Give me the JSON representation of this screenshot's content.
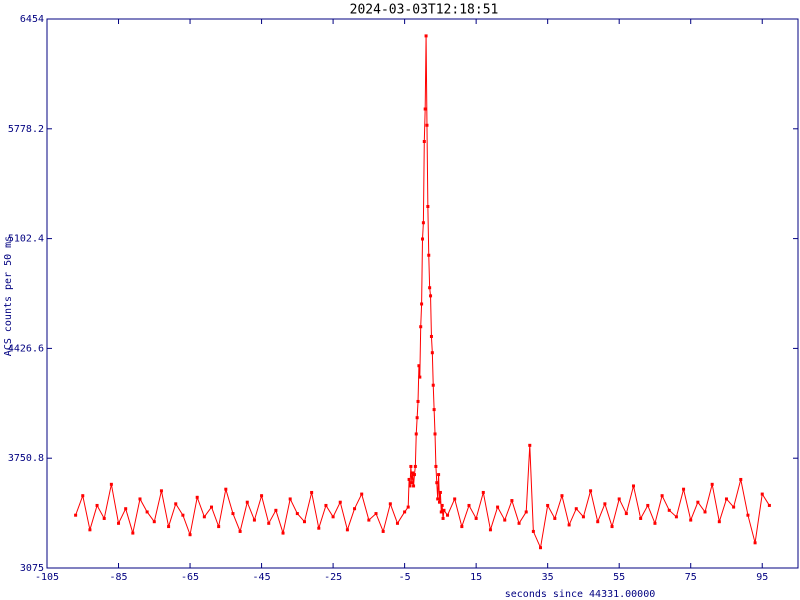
{
  "chart_data": {
    "type": "line",
    "title": "2024-03-03T12:18:51",
    "x_label": "seconds since 44331.00000",
    "y_label": "ACS counts per 50 ms",
    "xlim": [
      -105,
      105
    ],
    "xticks": [
      -105,
      -85,
      -65,
      -45,
      -25,
      -5,
      15,
      35,
      55,
      75,
      95
    ],
    "ylim": [
      3075,
      6454
    ],
    "yticks": [
      3075,
      3750.8,
      4426.6,
      5102.4,
      5778.2,
      6454
    ],
    "x": [
      -97,
      -95,
      -93,
      -91,
      -89,
      -87,
      -85,
      -83,
      -81,
      -79,
      -77,
      -75,
      -73,
      -71,
      -69,
      -67,
      -65,
      -63,
      -61,
      -59,
      -57,
      -55,
      -53,
      -51,
      -49,
      -47,
      -45,
      -43,
      -41,
      -39,
      -37,
      -35,
      -33,
      -31,
      -29,
      -27,
      -25,
      -23,
      -21,
      -19,
      -17,
      -15,
      -13,
      -11,
      -9,
      -7,
      -5,
      -4,
      -3.75,
      -3.5,
      -3.25,
      -3,
      -2.75,
      -2.5,
      -2.25,
      -2,
      -1.75,
      -1.5,
      -1.25,
      -1,
      -0.75,
      -0.5,
      -0.25,
      0,
      0.25,
      0.5,
      0.75,
      1,
      1.25,
      1.5,
      1.75,
      2,
      2.25,
      2.5,
      2.75,
      3,
      3.25,
      3.5,
      3.75,
      4,
      4.25,
      4.5,
      4.75,
      5,
      5.25,
      5.5,
      5.75,
      6,
      7,
      9,
      11,
      13,
      15,
      17,
      19,
      21,
      23,
      25,
      27,
      29,
      30,
      31,
      33,
      35,
      37,
      39,
      41,
      43,
      45,
      47,
      49,
      51,
      53,
      55,
      57,
      59,
      61,
      63,
      65,
      67,
      69,
      71,
      73,
      75,
      77,
      79,
      81,
      83,
      85,
      87,
      89,
      91,
      93,
      95,
      97
    ],
    "series": [
      {
        "name": "ACS",
        "color": "#ff0000",
        "values": [
          3400,
          3520,
          3310,
          3460,
          3380,
          3590,
          3350,
          3440,
          3290,
          3500,
          3420,
          3360,
          3550,
          3330,
          3470,
          3400,
          3280,
          3510,
          3390,
          3450,
          3330,
          3560,
          3410,
          3300,
          3480,
          3370,
          3520,
          3350,
          3430,
          3290,
          3500,
          3410,
          3360,
          3540,
          3320,
          3460,
          3390,
          3480,
          3310,
          3440,
          3530,
          3370,
          3410,
          3300,
          3470,
          3350,
          3420,
          3450,
          3620,
          3580,
          3700,
          3600,
          3660,
          3580,
          3650,
          3700,
          3900,
          4000,
          4100,
          4320,
          4250,
          4560,
          4700,
          5100,
          5200,
          5700,
          5900,
          6350,
          5800,
          5300,
          5000,
          4800,
          4750,
          4500,
          4400,
          4200,
          4050,
          3900,
          3700,
          3600,
          3500,
          3650,
          3480,
          3540,
          3420,
          3460,
          3380,
          3430,
          3400,
          3500,
          3330,
          3460,
          3380,
          3540,
          3310,
          3450,
          3370,
          3490,
          3350,
          3420,
          3830,
          3300,
          3200,
          3460,
          3380,
          3520,
          3340,
          3440,
          3390,
          3550,
          3360,
          3470,
          3330,
          3500,
          3410,
          3580,
          3380,
          3460,
          3350,
          3520,
          3430,
          3390,
          3560,
          3370,
          3480,
          3420,
          3590,
          3360,
          3500,
          3450,
          3620,
          3400,
          3230,
          3530,
          3460
        ]
      }
    ]
  }
}
